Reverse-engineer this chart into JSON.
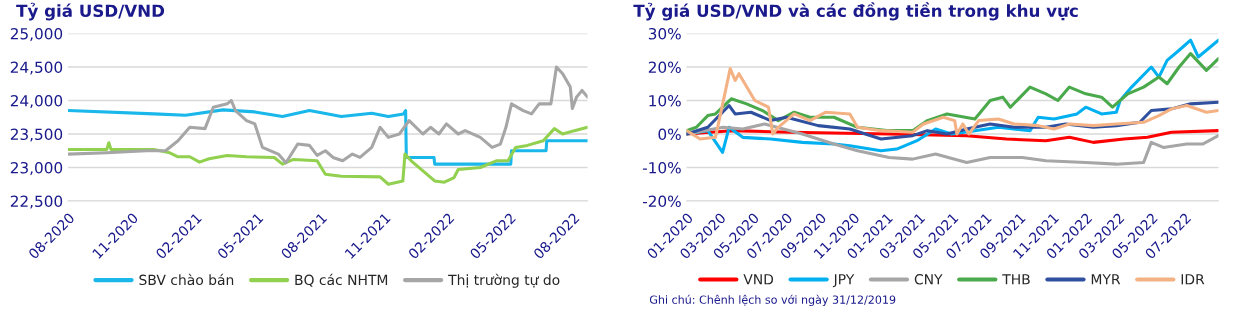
{
  "chart_data": [
    {
      "type": "line",
      "title": "Tỷ giá USD/VND",
      "legend": "bottom",
      "grid": "y",
      "line_style": "solid",
      "xlim": [
        "2020-08-01",
        "2022-08-22"
      ],
      "xticks": [
        {
          "value": "2020-08-01",
          "label": "08-2020"
        },
        {
          "value": "2020-11-01",
          "label": "11-2020"
        },
        {
          "value": "2021-02-01",
          "label": "02-2021"
        },
        {
          "value": "2021-05-01",
          "label": "05-2021"
        },
        {
          "value": "2021-08-01",
          "label": "08-2021"
        },
        {
          "value": "2021-11-01",
          "label": "11-2021"
        },
        {
          "value": "2022-02-01",
          "label": "02-2022"
        },
        {
          "value": "2022-05-01",
          "label": "05-2022"
        },
        {
          "value": "2022-08-01",
          "label": "08-2022"
        }
      ],
      "ylim": [
        22500,
        25000
      ],
      "yticks": [
        {
          "value": 22500,
          "label": "22,500"
        },
        {
          "value": 23000,
          "label": "23,000"
        },
        {
          "value": 23500,
          "label": "23,500"
        },
        {
          "value": 24000,
          "label": "24,000"
        },
        {
          "value": 24500,
          "label": "24,500"
        },
        {
          "value": 25000,
          "label": "25,000"
        }
      ],
      "series": [
        {
          "name": "SBV chào bán",
          "color": "#1ab7ea",
          "x": [
            "2020-08-01",
            "2020-12-03",
            "2021-01-18",
            "2021-03-13",
            "2021-04-28",
            "2021-06-07",
            "2021-07-16",
            "2021-08-31",
            "2021-10-14",
            "2021-11-07",
            "2021-11-29",
            "2021-12-02",
            "2021-12-03",
            "2022-01-12",
            "2022-01-13",
            "2022-05-03",
            "2022-05-04",
            "2022-06-23",
            "2022-06-24",
            "2022-08-22"
          ],
          "values": [
            23850,
            23800,
            23780,
            23860,
            23830,
            23760,
            23850,
            23760,
            23810,
            23760,
            23800,
            23850,
            23150,
            23150,
            23050,
            23050,
            23250,
            23250,
            23400,
            23400
          ]
        },
        {
          "name": "BQ các NHTM",
          "color": "#92d050",
          "x": [
            "2020-08-01",
            "2020-09-26",
            "2020-09-29",
            "2020-10-02",
            "2020-12-03",
            "2020-12-26",
            "2021-01-07",
            "2021-01-24",
            "2021-02-07",
            "2021-02-21",
            "2021-03-19",
            "2021-04-16",
            "2021-05-26",
            "2021-06-07",
            "2021-06-23",
            "2021-07-27",
            "2021-08-08",
            "2021-08-31",
            "2021-10-26",
            "2021-11-07",
            "2021-11-28",
            "2021-12-01",
            "2021-12-10",
            "2021-12-27",
            "2022-01-13",
            "2022-01-27",
            "2022-02-10",
            "2022-02-16",
            "2022-03-20",
            "2022-04-12",
            "2022-04-29",
            "2022-05-10",
            "2022-05-27",
            "2022-06-19",
            "2022-07-05",
            "2022-07-17",
            "2022-08-03",
            "2022-08-22"
          ],
          "values": [
            23270,
            23270,
            23370,
            23270,
            23270,
            23220,
            23160,
            23160,
            23080,
            23130,
            23180,
            23160,
            23150,
            23050,
            23120,
            23100,
            22900,
            22870,
            22860,
            22750,
            22800,
            23200,
            23100,
            22950,
            22800,
            22780,
            22850,
            22970,
            23000,
            23100,
            23100,
            23300,
            23330,
            23400,
            23580,
            23500,
            23550,
            23600
          ]
        },
        {
          "name": "Thị trường tự do",
          "color": "#a6a6a6",
          "x": [
            "2020-08-01",
            "2020-09-26",
            "2020-11-22",
            "2020-12-20",
            "2021-01-07",
            "2021-01-24",
            "2021-02-15",
            "2021-02-27",
            "2021-03-19",
            "2021-03-25",
            "2021-03-31",
            "2021-04-16",
            "2021-04-28",
            "2021-05-09",
            "2021-06-01",
            "2021-06-12",
            "2021-06-29",
            "2021-07-16",
            "2021-07-27",
            "2021-08-08",
            "2021-08-19",
            "2021-09-02",
            "2021-09-16",
            "2021-09-27",
            "2021-10-14",
            "2021-10-26",
            "2021-11-07",
            "2021-11-23",
            "2021-12-07",
            "2021-12-27",
            "2022-01-07",
            "2022-01-19",
            "2022-01-30",
            "2022-02-16",
            "2022-02-26",
            "2022-03-20",
            "2022-04-06",
            "2022-04-18",
            "2022-04-26",
            "2022-05-04",
            "2022-05-21",
            "2022-06-02",
            "2022-06-13",
            "2022-06-30",
            "2022-07-08",
            "2022-07-17",
            "2022-07-28",
            "2022-07-31",
            "2022-08-06",
            "2022-08-14",
            "2022-08-22"
          ],
          "values": [
            23200,
            23220,
            23250,
            23250,
            23400,
            23600,
            23580,
            23900,
            23950,
            24000,
            23850,
            23700,
            23650,
            23300,
            23200,
            23070,
            23350,
            23330,
            23180,
            23250,
            23150,
            23100,
            23200,
            23150,
            23300,
            23600,
            23450,
            23500,
            23700,
            23500,
            23600,
            23500,
            23650,
            23500,
            23550,
            23450,
            23300,
            23350,
            23600,
            23950,
            23850,
            23800,
            23950,
            23950,
            24500,
            24400,
            24200,
            23880,
            24050,
            24150,
            24050
          ]
        }
      ]
    },
    {
      "type": "line",
      "title": "Tỷ giá USD/VND và các đồng tiền trong khu vực",
      "legend": "bottom",
      "grid": "y",
      "line_style": "solid",
      "annotations": [
        "Ghi chú: Chênh lệch so với ngày 31/12/2019"
      ],
      "xlim": [
        "2020-01-01",
        "2022-09-01"
      ],
      "xticks": [
        {
          "value": "2020-01-01",
          "label": "01-2020"
        },
        {
          "value": "2020-03-01",
          "label": "03-2020"
        },
        {
          "value": "2020-05-01",
          "label": "05-2020"
        },
        {
          "value": "2020-07-01",
          "label": "07-2020"
        },
        {
          "value": "2020-09-01",
          "label": "09-2020"
        },
        {
          "value": "2020-11-01",
          "label": "11-2020"
        },
        {
          "value": "2021-01-01",
          "label": "01-2021"
        },
        {
          "value": "2021-03-01",
          "label": "03-2021"
        },
        {
          "value": "2021-05-01",
          "label": "05-2021"
        },
        {
          "value": "2021-07-01",
          "label": "07-2021"
        },
        {
          "value": "2021-09-01",
          "label": "09-2021"
        },
        {
          "value": "2021-11-01",
          "label": "11-2021"
        },
        {
          "value": "2022-01-01",
          "label": "01-2022"
        },
        {
          "value": "2022-03-01",
          "label": "03-2022"
        },
        {
          "value": "2022-05-01",
          "label": "05-2022"
        },
        {
          "value": "2022-07-01",
          "label": "07-2022"
        }
      ],
      "ylim": [
        -20,
        30
      ],
      "yticks": [
        {
          "value": -20,
          "label": "-20%"
        },
        {
          "value": -10,
          "label": "-10%"
        },
        {
          "value": 0,
          "label": "0%"
        },
        {
          "value": 10,
          "label": "10%"
        },
        {
          "value": 20,
          "label": "20%"
        },
        {
          "value": 30,
          "label": "30%"
        }
      ],
      "series": [
        {
          "name": "VND",
          "color": "#ff0000",
          "x": [
            "2020-01-01",
            "2020-03-23",
            "2020-07-09",
            "2021-01-06",
            "2021-05-28",
            "2021-08-09",
            "2021-10-20",
            "2021-12-02",
            "2022-01-15",
            "2022-03-12",
            "2022-04-24",
            "2022-06-07",
            "2022-09-01"
          ],
          "values": [
            0,
            1,
            0.5,
            0,
            -0.5,
            -1.5,
            -2,
            -1,
            -2.5,
            -1.5,
            -1,
            0.5,
            1
          ]
        },
        {
          "name": "JPY",
          "color": "#00b0f0",
          "x": [
            "2020-01-01",
            "2020-02-09",
            "2020-03-07",
            "2020-03-19",
            "2020-04-13",
            "2020-06-03",
            "2020-07-31",
            "2020-09-27",
            "2020-10-26",
            "2020-12-22",
            "2021-01-20",
            "2021-02-26",
            "2021-04-01",
            "2021-04-30",
            "2021-06-12",
            "2021-07-25",
            "2021-09-21",
            "2021-10-06",
            "2021-11-04",
            "2021-12-16",
            "2022-01-01",
            "2022-01-30",
            "2022-02-26",
            "2022-03-05",
            "2022-03-26",
            "2022-05-01",
            "2022-05-15",
            "2022-05-30",
            "2022-06-21",
            "2022-07-12",
            "2022-07-26",
            "2022-08-10",
            "2022-09-01"
          ],
          "values": [
            0,
            1,
            -5.5,
            2,
            -1,
            -1.5,
            -2.5,
            -3,
            -3.5,
            -5,
            -4.5,
            -2,
            1.5,
            0,
            1,
            2,
            1,
            5,
            4.5,
            6,
            8,
            6,
            6.5,
            10,
            14,
            20,
            17,
            22,
            25,
            28,
            23,
            25,
            28
          ]
        },
        {
          "name": "CNY",
          "color": "#a6a6a6",
          "x": [
            "2020-01-01",
            "2020-03-08",
            "2020-04-13",
            "2020-05-23",
            "2020-07-31",
            "2020-09-27",
            "2020-11-09",
            "2021-01-06",
            "2021-02-18",
            "2021-04-01",
            "2021-05-28",
            "2021-07-10",
            "2021-09-07",
            "2021-10-20",
            "2022-01-01",
            "2022-02-26",
            "2022-04-17",
            "2022-05-01",
            "2022-05-23",
            "2022-07-05",
            "2022-08-03",
            "2022-09-01"
          ],
          "values": [
            0,
            2,
            1.5,
            3,
            0,
            -3,
            -5,
            -7,
            -7.5,
            -6,
            -8.5,
            -7,
            -7,
            -8,
            -8.5,
            -9,
            -8.5,
            -2.5,
            -4,
            -3,
            -3,
            -0.5
          ]
        },
        {
          "name": "THB",
          "color": "#4aa94a",
          "x": [
            "2020-01-01",
            "2020-01-19",
            "2020-02-09",
            "2020-02-23",
            "2020-03-23",
            "2020-04-20",
            "2020-05-19",
            "2020-06-17",
            "2020-07-16",
            "2020-08-14",
            "2020-09-27",
            "2020-11-09",
            "2021-01-06",
            "2021-02-18",
            "2021-03-17",
            "2021-04-22",
            "2021-06-12",
            "2021-07-10",
            "2021-08-02",
            "2021-08-16",
            "2021-09-21",
            "2021-10-20",
            "2021-11-11",
            "2021-12-02",
            "2022-01-01",
            "2022-01-30",
            "2022-02-19",
            "2022-03-19",
            "2022-04-17",
            "2022-05-15",
            "2022-05-30",
            "2022-06-21",
            "2022-07-12",
            "2022-08-10",
            "2022-09-01"
          ],
          "values": [
            1,
            2,
            5.5,
            6,
            10.5,
            9,
            7,
            4,
            6.5,
            5,
            5,
            2,
            1,
            1,
            4,
            6,
            4.5,
            10,
            11,
            8,
            14,
            12,
            10,
            14,
            12,
            11,
            8,
            12,
            14,
            17,
            15,
            20,
            24,
            19,
            22.5
          ]
        },
        {
          "name": "MYR",
          "color": "#2f4f9f",
          "x": [
            "2020-01-01",
            "2020-02-09",
            "2020-03-19",
            "2020-03-30",
            "2020-04-28",
            "2020-06-03",
            "2020-07-02",
            "2020-08-29",
            "2020-10-26",
            "2020-12-22",
            "2021-02-18",
            "2021-03-17",
            "2021-04-22",
            "2021-05-28",
            "2021-07-10",
            "2021-08-23",
            "2021-10-20",
            "2021-11-25",
            "2022-01-15",
            "2022-02-26",
            "2022-04-10",
            "2022-05-01",
            "2022-06-07",
            "2022-07-12",
            "2022-09-01"
          ],
          "values": [
            0,
            2,
            8.5,
            6,
            6.5,
            4,
            5,
            2.5,
            1.5,
            -1.5,
            -0.5,
            1,
            0,
            1.5,
            3,
            2,
            2,
            3,
            2,
            2.5,
            3.5,
            7,
            7.5,
            9,
            9.5
          ]
        },
        {
          "name": "IDR",
          "color": "#f4b183",
          "x": [
            "2020-01-01",
            "2020-01-26",
            "2020-02-23",
            "2020-03-21",
            "2020-03-30",
            "2020-04-06",
            "2020-05-05",
            "2020-05-30",
            "2020-06-07",
            "2020-06-17",
            "2020-07-16",
            "2020-08-14",
            "2020-09-12",
            "2020-10-26",
            "2020-11-09",
            "2020-12-22",
            "2021-02-18",
            "2021-03-10",
            "2021-04-15",
            "2021-05-06",
            "2021-05-10",
            "2021-05-21",
            "2021-06-01",
            "2021-06-19",
            "2021-07-25",
            "2021-08-23",
            "2021-10-06",
            "2021-11-04",
            "2021-12-02",
            "2022-01-15",
            "2022-02-26",
            "2022-04-17",
            "2022-05-15",
            "2022-06-07",
            "2022-07-05",
            "2022-08-10",
            "2022-09-01"
          ],
          "values": [
            1,
            -1.5,
            -1,
            19.5,
            16,
            18,
            10,
            8,
            0,
            2,
            6,
            4,
            6.5,
            6,
            2,
            1,
            0.5,
            3,
            5,
            4,
            0,
            3,
            0,
            4,
            4.5,
            3,
            2.5,
            1.5,
            3,
            2.5,
            3,
            3.5,
            5.5,
            7.5,
            8.5,
            6.5,
            7
          ]
        }
      ]
    }
  ]
}
